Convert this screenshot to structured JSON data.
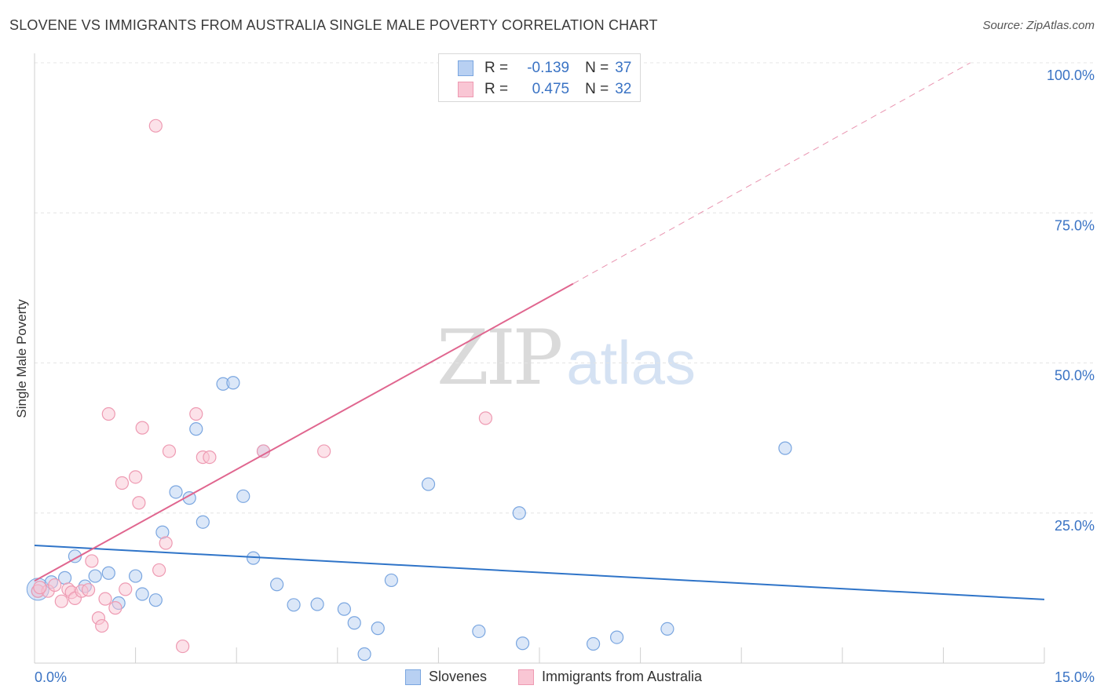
{
  "title": "SLOVENE VS IMMIGRANTS FROM AUSTRALIA SINGLE MALE POVERTY CORRELATION CHART",
  "source": "Source: ZipAtlas.com",
  "watermark": {
    "zip": "ZIP",
    "atlas": "atlas"
  },
  "colors": {
    "blue_fill": "#b8d0f2",
    "blue_stroke": "#7aa6e0",
    "blue_line": "#2f74c8",
    "pink_fill": "#f9c6d4",
    "pink_stroke": "#ee9ab2",
    "pink_line": "#e0668f",
    "axis_text": "#3a73c4",
    "grid": "#e4e4e4"
  },
  "legend_top": [
    {
      "r_label": "R =",
      "r_value": "-0.139",
      "n_label": "N =",
      "n_value": "37"
    },
    {
      "r_label": "R =",
      "r_value": "0.475",
      "n_label": "N =",
      "n_value": "32"
    }
  ],
  "legend_bottom": [
    "Slovenes",
    "Immigrants from Australia"
  ],
  "chart_data": {
    "type": "scatter",
    "ylabel": "Single Male Poverty",
    "xlabel": "",
    "xlim": [
      0,
      15
    ],
    "ylim": [
      0,
      100
    ],
    "x_tick_labels": [
      "0.0%",
      "15.0%"
    ],
    "y_tick_labels": [
      "100.0%",
      "75.0%",
      "50.0%",
      "25.0%"
    ],
    "y_ticks": [
      100,
      75,
      50,
      25
    ],
    "x_minor_ticks": [
      0,
      1.5,
      3,
      4.5,
      6,
      7.5,
      9,
      10.5,
      12,
      13.5,
      15
    ],
    "grid": true,
    "legend_position": "top-center",
    "series": [
      {
        "name": "Slovenes",
        "trend": {
          "x0": 0,
          "y0": 19.6,
          "x1": 15,
          "y1": 10.6,
          "dashed_after": null
        },
        "points": [
          [
            0.05,
            12.0
          ],
          [
            0.25,
            13.5
          ],
          [
            0.45,
            14.2
          ],
          [
            0.6,
            17.8
          ],
          [
            0.75,
            12.8
          ],
          [
            0.9,
            14.5
          ],
          [
            1.1,
            15.0
          ],
          [
            1.25,
            10.0
          ],
          [
            1.5,
            14.5
          ],
          [
            1.6,
            11.5
          ],
          [
            1.8,
            10.5
          ],
          [
            1.9,
            21.8
          ],
          [
            2.1,
            28.5
          ],
          [
            2.3,
            27.5
          ],
          [
            2.4,
            39.0
          ],
          [
            2.5,
            23.5
          ],
          [
            2.8,
            46.5
          ],
          [
            2.95,
            46.7
          ],
          [
            3.1,
            27.8
          ],
          [
            3.25,
            17.5
          ],
          [
            3.4,
            35.3
          ],
          [
            3.6,
            13.1
          ],
          [
            3.85,
            9.7
          ],
          [
            4.2,
            9.8
          ],
          [
            4.6,
            9.0
          ],
          [
            4.75,
            6.7
          ],
          [
            4.9,
            1.5
          ],
          [
            5.1,
            5.8
          ],
          [
            5.3,
            13.8
          ],
          [
            5.85,
            29.8
          ],
          [
            6.6,
            5.3
          ],
          [
            7.2,
            25.0
          ],
          [
            7.25,
            3.3
          ],
          [
            8.3,
            3.2
          ],
          [
            8.65,
            4.3
          ],
          [
            9.4,
            5.7
          ],
          [
            11.15,
            35.8
          ]
        ]
      },
      {
        "name": "Immigrants from Australia",
        "trend": {
          "x0": 0,
          "y0": 13.7,
          "x1": 8.0,
          "y1": 63.2,
          "x2": 13.9,
          "y2": 100
        },
        "points": [
          [
            0.05,
            12.0
          ],
          [
            0.2,
            12.0
          ],
          [
            0.3,
            13.0
          ],
          [
            0.4,
            10.3
          ],
          [
            0.5,
            12.3
          ],
          [
            0.55,
            11.8
          ],
          [
            0.6,
            10.8
          ],
          [
            0.7,
            12.0
          ],
          [
            0.8,
            12.2
          ],
          [
            0.85,
            17.0
          ],
          [
            0.95,
            7.5
          ],
          [
            1.0,
            6.2
          ],
          [
            1.05,
            10.7
          ],
          [
            1.1,
            41.5
          ],
          [
            1.2,
            9.2
          ],
          [
            1.3,
            30.0
          ],
          [
            1.35,
            12.3
          ],
          [
            1.5,
            31.0
          ],
          [
            1.55,
            26.7
          ],
          [
            1.6,
            39.2
          ],
          [
            1.8,
            89.5
          ],
          [
            1.85,
            15.5
          ],
          [
            1.95,
            20.0
          ],
          [
            2.0,
            35.3
          ],
          [
            2.2,
            2.8
          ],
          [
            2.4,
            41.5
          ],
          [
            2.5,
            34.3
          ],
          [
            2.6,
            34.3
          ],
          [
            3.4,
            35.3
          ],
          [
            4.3,
            35.3
          ],
          [
            6.7,
            40.8
          ],
          [
            0.08,
            12.6
          ]
        ]
      }
    ]
  }
}
